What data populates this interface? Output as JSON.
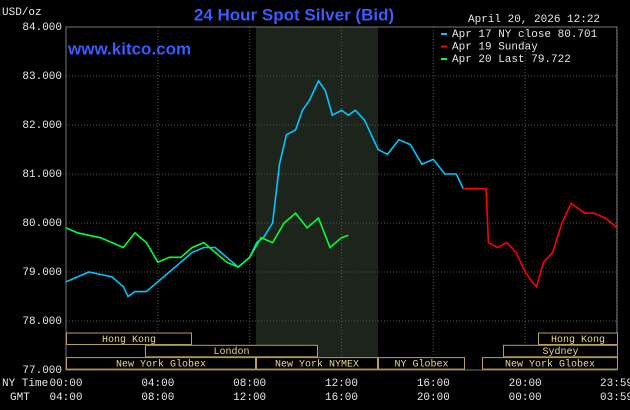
{
  "chart_data": {
    "type": "line",
    "title": "24 Hour Spot Silver (Bid)",
    "unit_label": "USD/oz",
    "timestamp": "April 20, 2026 12:22",
    "watermark": "www.kitco.com",
    "x_row_label": "NY Time",
    "x2_row_label": "GMT",
    "xlim": [
      0,
      24
    ],
    "ylim": [
      77,
      84
    ],
    "yticks": [
      {
        "value": 77,
        "label": "77.000"
      },
      {
        "value": 78,
        "label": "78.000"
      },
      {
        "value": 79,
        "label": "79.000"
      },
      {
        "value": 80,
        "label": "80.000"
      },
      {
        "value": 81,
        "label": "81.000"
      },
      {
        "value": 82,
        "label": "82.000"
      },
      {
        "value": 83,
        "label": "83.000"
      },
      {
        "value": 84,
        "label": "84.000"
      }
    ],
    "xticks": [
      {
        "value": 0,
        "label": "00:00"
      },
      {
        "value": 4,
        "label": "04:00"
      },
      {
        "value": 8,
        "label": "08:00"
      },
      {
        "value": 12,
        "label": "12:00"
      },
      {
        "value": 16,
        "label": "16:00"
      },
      {
        "value": 20,
        "label": "20:00"
      },
      {
        "value": 23.98,
        "label": "23:59"
      }
    ],
    "x2ticks": [
      {
        "value": 0,
        "label": "04:00"
      },
      {
        "value": 4,
        "label": "08:00"
      },
      {
        "value": 8,
        "label": "12:00"
      },
      {
        "value": 12,
        "label": "16:00"
      },
      {
        "value": 16,
        "label": "20:00"
      },
      {
        "value": 20,
        "label": "00:00"
      },
      {
        "value": 23.98,
        "label": "03:59"
      }
    ],
    "grid": true,
    "sessions": [
      "Hong Kong",
      "London",
      "New York Globex",
      "New York NYMEX",
      "NY Globex",
      "Hong Kong",
      "Sydney",
      "New York Globex"
    ],
    "series": [
      {
        "name": "Apr 17 NY close 80.701",
        "color": "#00c8ff",
        "x": [
          0,
          0.5,
          1,
          1.5,
          2,
          2.5,
          2.7,
          3,
          3.5,
          4,
          4.5,
          5,
          5.5,
          6,
          6.5,
          7,
          7.5,
          8,
          8.3,
          8.6,
          9,
          9.3,
          9.6,
          10,
          10.3,
          10.6,
          11,
          11.3,
          11.6,
          12,
          12.3,
          12.6,
          13,
          13.3,
          13.6,
          14,
          14.5,
          15,
          15.5,
          16,
          16.5,
          17,
          17.3
        ],
        "values": [
          78.8,
          78.9,
          79.0,
          78.95,
          78.9,
          78.7,
          78.5,
          78.6,
          78.6,
          78.8,
          79.0,
          79.2,
          79.4,
          79.5,
          79.5,
          79.3,
          79.1,
          79.3,
          79.6,
          79.7,
          80.0,
          81.2,
          81.8,
          81.9,
          82.3,
          82.5,
          82.9,
          82.7,
          82.2,
          82.3,
          82.2,
          82.3,
          82.1,
          81.8,
          81.5,
          81.4,
          81.7,
          81.6,
          81.2,
          81.3,
          81.0,
          81.0,
          80.7
        ]
      },
      {
        "name": "Apr 19 Sunday",
        "color": "#ff0000",
        "x": [
          17.3,
          18.3,
          18.4,
          18.8,
          19.2,
          19.6,
          20,
          20.3,
          20.5,
          20.8,
          21.2,
          21.6,
          22,
          22.3,
          22.6,
          23,
          23.5,
          24
        ],
        "values": [
          80.7,
          80.7,
          79.6,
          79.5,
          79.6,
          79.4,
          79.0,
          78.8,
          78.7,
          79.2,
          79.4,
          80.0,
          80.4,
          80.3,
          80.2,
          80.2,
          80.1,
          79.9
        ]
      },
      {
        "name": "Apr 20 Last 79.722",
        "color": "#00ff33",
        "x": [
          0,
          0.5,
          1,
          1.5,
          2,
          2.5,
          3,
          3.5,
          4,
          4.5,
          5,
          5.5,
          6,
          6.5,
          7,
          7.5,
          8,
          8.5,
          9,
          9.5,
          10,
          10.5,
          11,
          11.5,
          12,
          12.3
        ],
        "values": [
          79.9,
          79.8,
          79.75,
          79.7,
          79.6,
          79.5,
          79.8,
          79.6,
          79.2,
          79.3,
          79.3,
          79.5,
          79.6,
          79.4,
          79.2,
          79.1,
          79.3,
          79.7,
          79.6,
          80.0,
          80.2,
          79.9,
          80.1,
          79.5,
          79.7,
          79.75
        ]
      }
    ]
  }
}
